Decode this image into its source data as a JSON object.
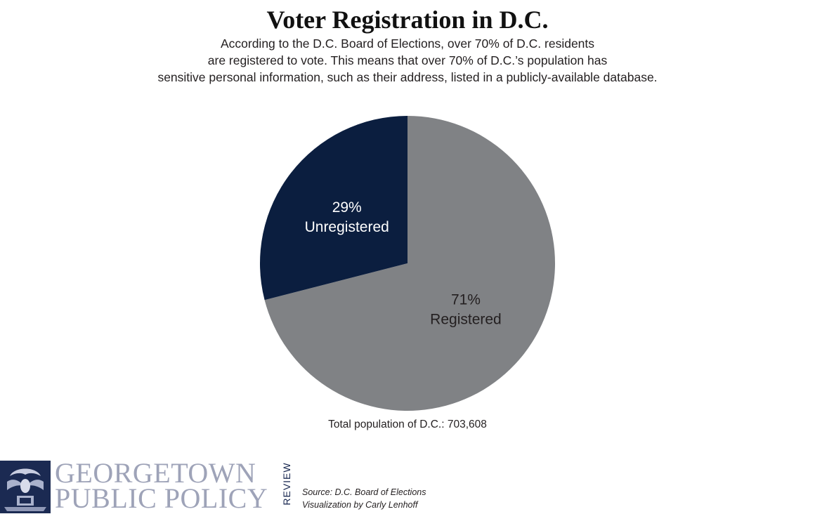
{
  "header": {
    "title": "Voter Registration in D.C.",
    "subtitle_lines": [
      "According to the D.C. Board of Elections, over 70% of D.C. residents",
      "are registered to vote. This means that over 70% of D.C.’s population has",
      "sensitive personal information, such as their address, listed in a publicly-available database."
    ]
  },
  "chart_data": {
    "type": "pie",
    "slices": [
      {
        "label": "Registered",
        "value": 71,
        "value_text": "71%",
        "color": "#808285",
        "text_color": "#231f20"
      },
      {
        "label": "Unregistered",
        "value": 29,
        "value_text": "29%",
        "color": "#0b1e3f",
        "text_color": "#ffffff"
      }
    ],
    "note": "Total population of D.C.: 703,608"
  },
  "footer": {
    "logo_line1": "GEORGETOWN",
    "logo_line2": "PUBLIC POLICY",
    "logo_review": "REVIEW",
    "source": "Source: D.C. Board of Elections",
    "credit": "Visualization by Carly Lenhoff",
    "brand_color": "#1b2a52"
  }
}
